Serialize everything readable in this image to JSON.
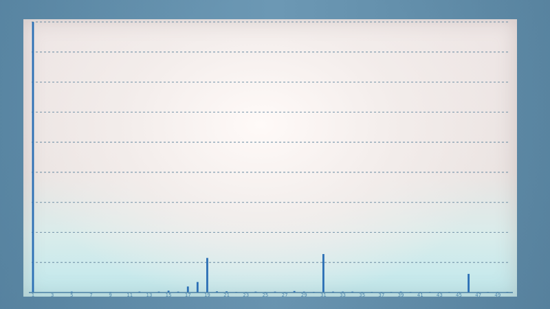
{
  "chart_data": {
    "type": "bar",
    "title": "",
    "xlabel": "",
    "ylabel": "",
    "grid": true,
    "legend": "none",
    "color": "#2b6fb5",
    "ylim": [
      0,
      90
    ],
    "yticks": [
      0,
      10,
      20,
      30,
      40,
      50,
      60,
      70,
      80,
      90
    ],
    "ytick_labels": [
      "",
      "",
      "",
      "",
      "",
      "",
      "",
      "",
      "",
      ""
    ],
    "categories": [
      "1",
      "2",
      "3",
      "4",
      "5",
      "6",
      "7",
      "8",
      "9",
      "10",
      "11",
      "12",
      "13",
      "14",
      "15",
      "16",
      "17",
      "18",
      "19",
      "20",
      "21",
      "22",
      "23",
      "24",
      "25",
      "26",
      "27",
      "28",
      "29",
      "30",
      "31",
      "32",
      "33",
      "34",
      "35",
      "36",
      "37",
      "38",
      "39",
      "40",
      "41",
      "42",
      "43",
      "44",
      "45",
      "46",
      "47",
      "48",
      "49",
      "50"
    ],
    "xtick_labels": [
      "1",
      "",
      "3",
      "",
      "5",
      "",
      "7",
      "",
      "9",
      "",
      "11",
      "",
      "13",
      "",
      "15",
      "",
      "17",
      "",
      "19",
      "",
      "21",
      "",
      "23",
      "",
      "25",
      "",
      "27",
      "",
      "29",
      "",
      "31",
      "",
      "33",
      "",
      "35",
      "",
      "37",
      "",
      "39",
      "",
      "41",
      "",
      "43",
      "",
      "45",
      "",
      "47",
      "",
      "49",
      ""
    ],
    "values": [
      90,
      0,
      0,
      0,
      0.3,
      0,
      0,
      0,
      0.2,
      0,
      0,
      0.3,
      0,
      0.3,
      0.6,
      0.3,
      2,
      3.5,
      11.5,
      0.4,
      0.4,
      0.2,
      0.2,
      0.3,
      0.2,
      0.3,
      0.2,
      0.5,
      0.3,
      0.2,
      12.8,
      0.3,
      0.3,
      0.3,
      0.2,
      0.2,
      0.2,
      0.2,
      0.3,
      0.2,
      0.2,
      0.2,
      0.2,
      0.2,
      0.2,
      6.2,
      0.2,
      0.2,
      0.2,
      0.2
    ]
  }
}
